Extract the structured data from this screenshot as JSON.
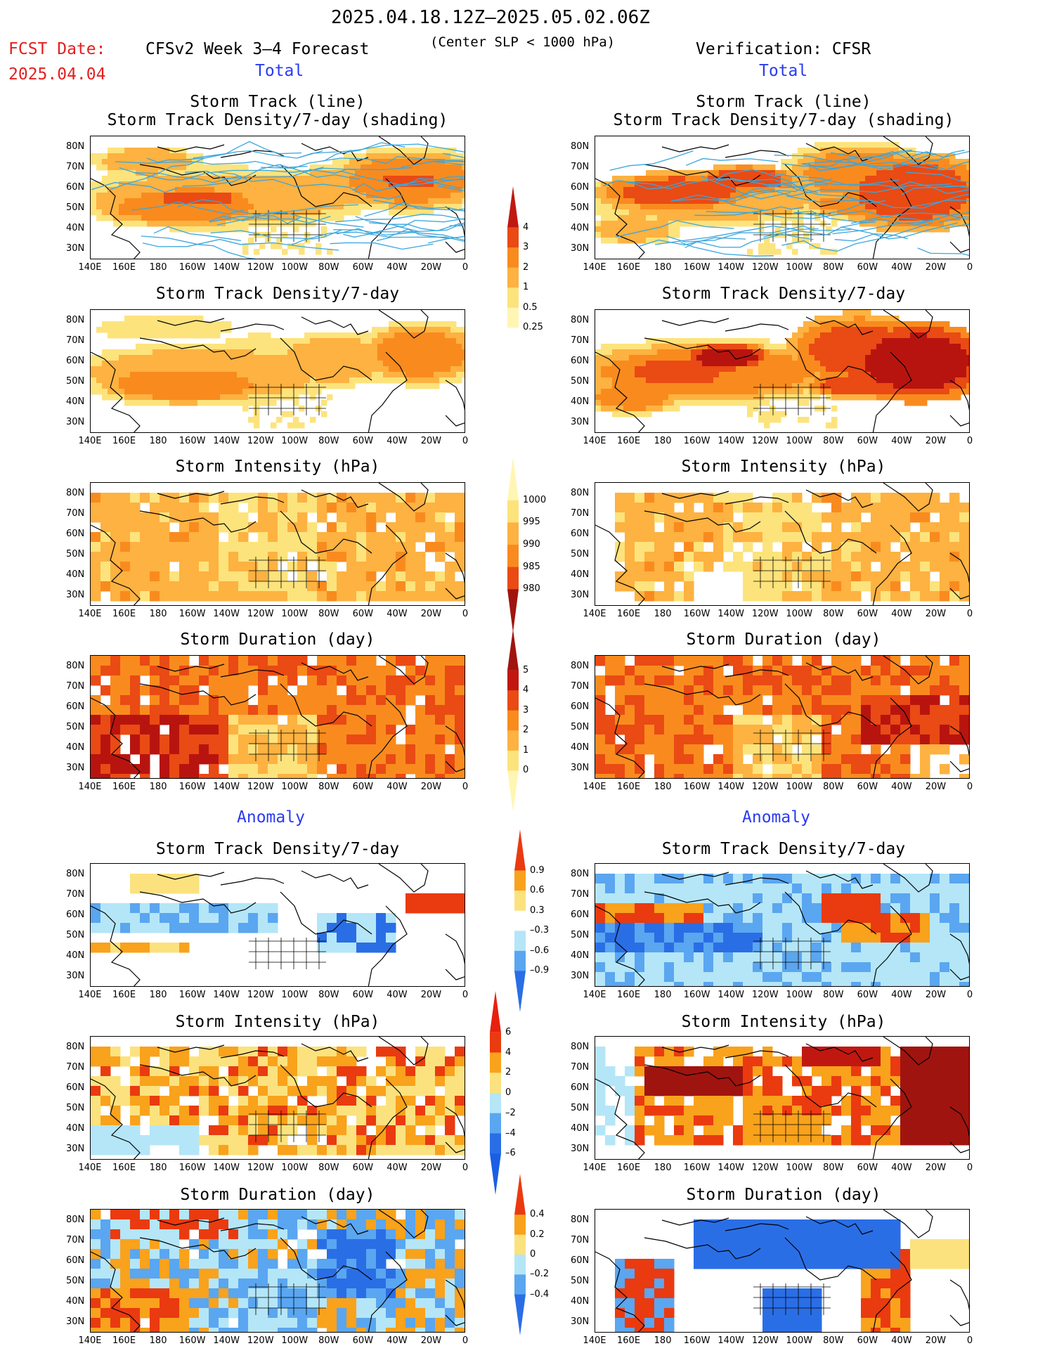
{
  "header": {
    "period": "2025.04.18.12Z–2025.05.02.06Z",
    "fcst_label": "FCST Date:",
    "fcst_date": "2025.04.04",
    "model_title": "CFSv2 Week 3–4 Forecast",
    "criterion": "(Center SLP < 1000 hPa)",
    "verification": "Verification: CFSR",
    "left_total": "Total",
    "right_total": "Total",
    "left_anomaly": "Anomaly",
    "right_anomaly": "Anomaly"
  },
  "panel_titles": {
    "track_line": "Storm Track (line)",
    "track_density_shading": "Storm Track Density/7-day (shading)",
    "track_density": "Storm Track Density/7-day",
    "intensity": "Storm Intensity (hPa)",
    "duration": "Storm Duration (day)"
  },
  "axes": {
    "lat_labels": [
      "80N",
      "70N",
      "60N",
      "50N",
      "40N",
      "30N"
    ],
    "lon_labels": [
      "140E",
      "160E",
      "180",
      "160W",
      "140W",
      "120W",
      "100W",
      "80W",
      "60W",
      "40W",
      "20W",
      "0"
    ]
  },
  "colorbars": {
    "density_total": [
      "4",
      "3",
      "2",
      "1",
      "0.5",
      "0.25"
    ],
    "intensity_total": [
      "1000",
      "995",
      "990",
      "985",
      "980"
    ],
    "duration_total": [
      "5",
      "4",
      "3",
      "2",
      "1",
      "0"
    ],
    "density_anom": [
      "0.9",
      "0.6",
      "0.3",
      "–0.3",
      "–0.6",
      "–0.9"
    ],
    "intensity_anom": [
      "6",
      "4",
      "2",
      "0",
      "–2",
      "–4",
      "–6"
    ],
    "duration_anom": [
      "0.4",
      "0.2",
      "0",
      "–0.2",
      "–0.4"
    ]
  },
  "colors": {
    "total_scale": [
      "#fff6b4",
      "#fde37c",
      "#fdb241",
      "#f98b1e",
      "#ea4a14",
      "#b8140f"
    ],
    "anom_neg": [
      "#2a6ee6",
      "#5aa6f0",
      "#b4e6f8"
    ],
    "anom_pos": [
      "#fbe27e",
      "#f9a21c",
      "#ea3a10"
    ],
    "track_line": "#3aa6de",
    "title_red": "#e32020",
    "title_blue": "#2a3bf0"
  }
}
